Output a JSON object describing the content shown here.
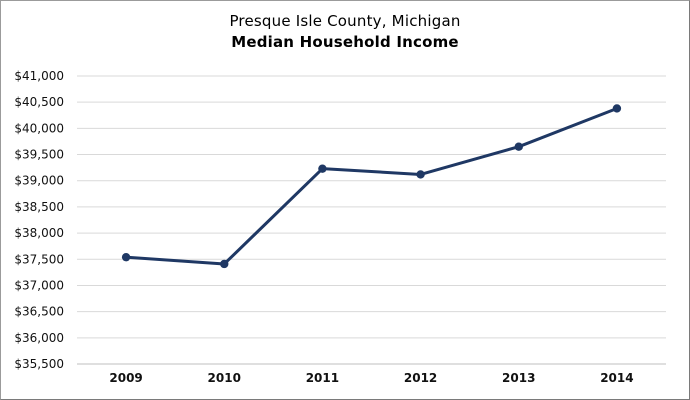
{
  "title": {
    "line1": "Presque Isle County, Michigan",
    "line2": "Median Household Income"
  },
  "chart_data": {
    "type": "line",
    "title": "Presque Isle County, Michigan",
    "subtitle": "Median Household Income",
    "x": [
      "2009",
      "2010",
      "2011",
      "2012",
      "2013",
      "2014"
    ],
    "series": [
      {
        "name": "Median Household Income",
        "values": [
          37540,
          37410,
          39230,
          39120,
          39650,
          40380
        ]
      }
    ],
    "xlabel": "",
    "ylabel": "",
    "ylim": [
      35500,
      41000
    ],
    "ytick_step": 500,
    "ytick_prefix": "$",
    "grid": true,
    "legend_position": "none",
    "line_color": "#1f3864",
    "marker": "circle",
    "gridline_color": "#d9d9d9",
    "axis_line_color": "#bfbfbf",
    "tick_label_color": "#111111"
  }
}
